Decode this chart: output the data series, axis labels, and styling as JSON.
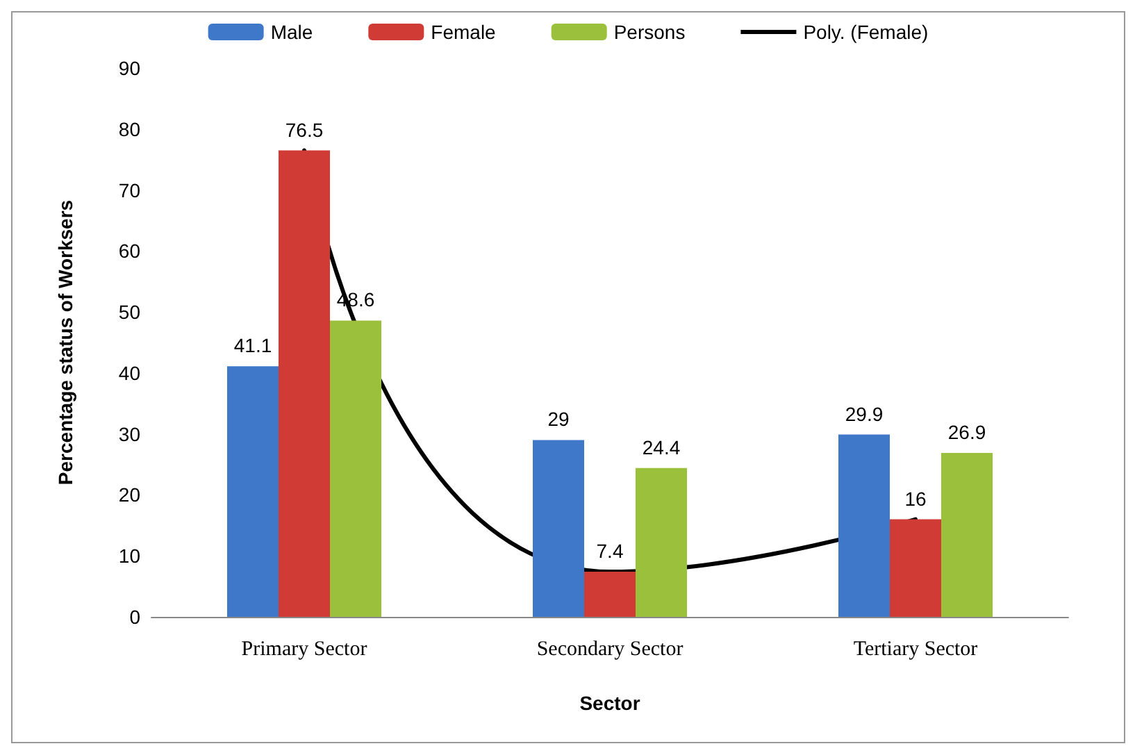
{
  "chart_data": {
    "type": "bar",
    "xlabel": "Sector",
    "ylabel": "Percentage status of Worksers",
    "categories": [
      "Primary Sector",
      "Secondary Sector",
      "Tertiary Sector"
    ],
    "series": [
      {
        "name": "Male",
        "color": "#3f78c8",
        "values": [
          41.1,
          29,
          29.9
        ]
      },
      {
        "name": "Female",
        "color": "#d13b36",
        "values": [
          76.5,
          7.4,
          16
        ]
      },
      {
        "name": "Persons",
        "color": "#9bc13c",
        "values": [
          48.6,
          24.4,
          26.9
        ]
      },
      {
        "name": "Poly. (Female)",
        "type": "line",
        "color": "#000000",
        "x": [
          "Primary Sector",
          "Secondary Sector",
          "Tertiary Sector"
        ],
        "values": [
          76.5,
          7.4,
          16
        ],
        "value_labels": [
          null,
          null,
          null
        ],
        "marker": "none"
      }
    ],
    "ylim": [
      0,
      90
    ],
    "yticks": [
      0,
      10,
      20,
      30,
      40,
      50,
      60,
      70,
      80,
      90
    ],
    "grid": false,
    "legend": "top",
    "data_labels": true
  }
}
